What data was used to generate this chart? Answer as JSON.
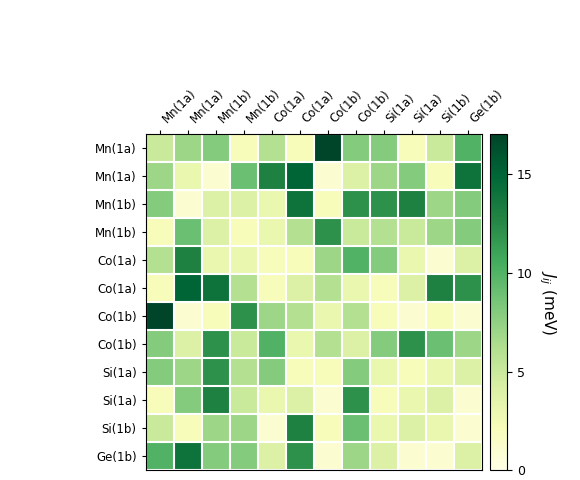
{
  "labels": [
    "Mn(1a)",
    "Mn(1a)",
    "Mn(1b)",
    "Mn(1b)",
    "Co(1a)",
    "Co(1a)",
    "Co(1b)",
    "Co(1b)",
    "Si(1a)",
    "Si(1a)",
    "Si(1b)",
    "Ge(1b)"
  ],
  "matrix": [
    [
      5,
      7,
      8,
      2,
      6,
      2,
      17,
      8,
      8,
      2,
      5,
      10
    ],
    [
      7,
      3,
      1,
      9,
      13,
      15,
      1,
      4,
      7,
      8,
      2,
      14
    ],
    [
      8,
      1,
      4,
      4,
      3,
      14,
      2,
      12,
      12,
      13,
      7,
      8
    ],
    [
      2,
      9,
      4,
      2,
      3,
      6,
      12,
      5,
      6,
      5,
      7,
      8
    ],
    [
      6,
      13,
      3,
      3,
      2,
      2,
      7,
      10,
      8,
      3,
      1,
      4
    ],
    [
      2,
      15,
      14,
      6,
      2,
      4,
      6,
      3,
      2,
      4,
      13,
      12
    ],
    [
      17,
      1,
      2,
      12,
      7,
      6,
      3,
      6,
      2,
      1,
      2,
      1
    ],
    [
      8,
      4,
      12,
      5,
      10,
      3,
      6,
      4,
      8,
      12,
      9,
      7
    ],
    [
      8,
      7,
      12,
      6,
      8,
      2,
      2,
      8,
      3,
      2,
      3,
      4
    ],
    [
      2,
      8,
      13,
      5,
      3,
      4,
      1,
      12,
      2,
      3,
      4,
      1
    ],
    [
      5,
      2,
      7,
      7,
      1,
      13,
      2,
      9,
      3,
      4,
      3,
      1
    ],
    [
      10,
      14,
      8,
      8,
      4,
      12,
      1,
      7,
      4,
      1,
      1,
      4
    ]
  ],
  "vmin": 0,
  "vmax": 17,
  "colorbar_ticks": [
    0,
    5,
    10,
    15
  ],
  "colorbar_label": "$J_{ij}$ (meV)",
  "cmap": "YlGn"
}
